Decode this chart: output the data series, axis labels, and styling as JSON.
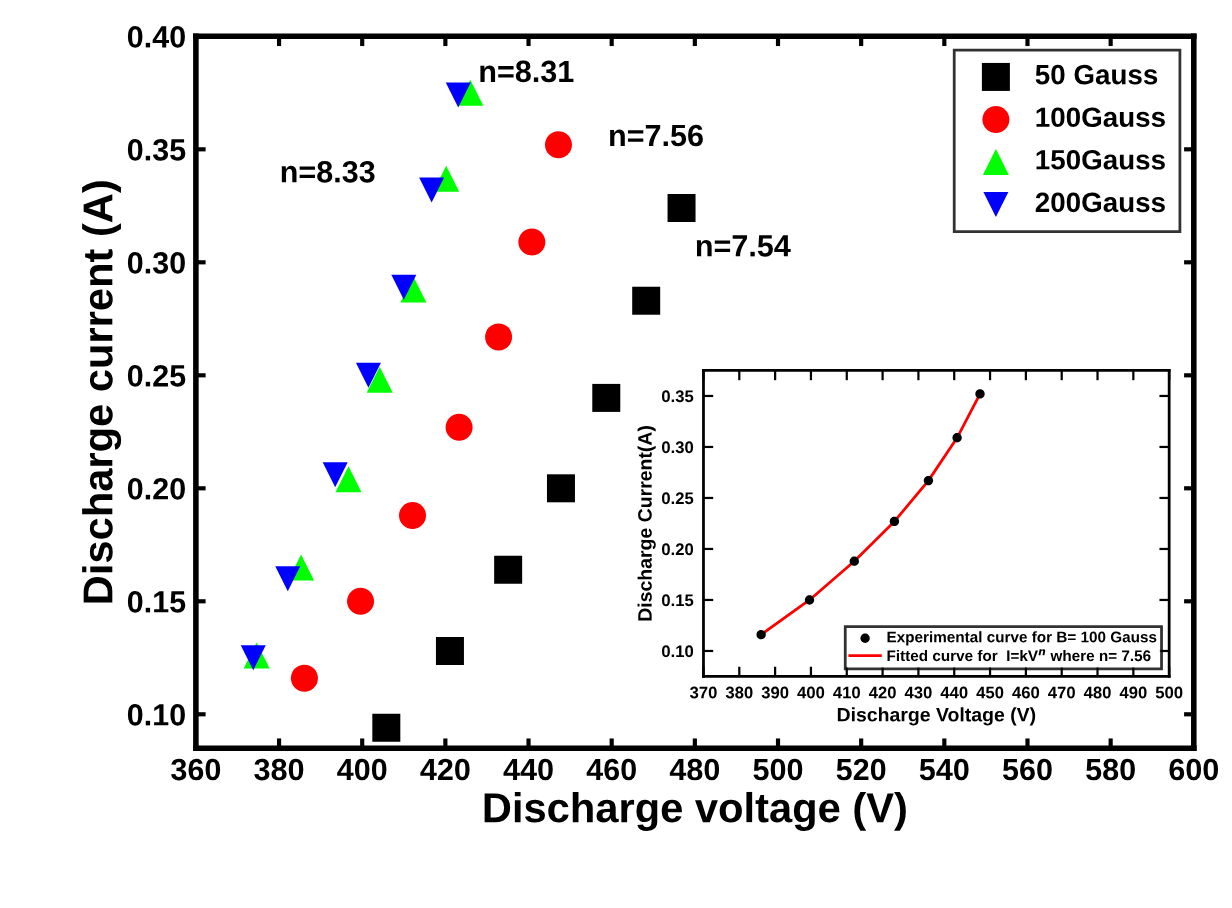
{
  "chart_data": [
    {
      "type": "scatter",
      "xlabel": "Discharge voltage (V)",
      "ylabel": "Discharge current (A)",
      "xlim": [
        360,
        600
      ],
      "ylim": [
        0.085,
        0.4
      ],
      "xticks": [
        360,
        380,
        400,
        420,
        440,
        460,
        480,
        500,
        520,
        540,
        560,
        580,
        600
      ],
      "yticks": [
        {
          "value": 0.1,
          "label": "0.10"
        },
        {
          "value": 0.15,
          "label": "0.15"
        },
        {
          "value": 0.2,
          "label": "0.20"
        },
        {
          "value": 0.25,
          "label": "0.25"
        },
        {
          "value": 0.3,
          "label": "0.30"
        },
        {
          "value": 0.35,
          "label": "0.35"
        },
        {
          "value": 0.4,
          "label": "0.40"
        }
      ],
      "legend": "top right",
      "grid": false,
      "series": [
        {
          "name": "50 Gauss",
          "color": "#000000",
          "marker": "square",
          "x": [
            405.8,
            421.1,
            435.1,
            447.8,
            458.7,
            468.3,
            476.8
          ],
          "values": [
            0.094,
            0.128,
            0.164,
            0.2,
            0.24,
            0.283,
            0.324
          ]
        },
        {
          "name": "100Gauss",
          "color": "#ff0000",
          "marker": "circle",
          "x": [
            386.1,
            399.6,
            412.1,
            423.3,
            432.8,
            440.8,
            447.2
          ],
          "values": [
            0.116,
            0.15,
            0.188,
            0.227,
            0.267,
            0.309,
            0.352
          ]
        },
        {
          "name": "150Gauss",
          "color": "#00ff00",
          "marker": "triangle",
          "x": [
            374.6,
            385.3,
            396.7,
            404.2,
            412.3,
            420.2,
            426.0
          ],
          "values": [
            0.126,
            0.165,
            0.204,
            0.248,
            0.288,
            0.337,
            0.375
          ]
        },
        {
          "name": "200Gauss",
          "color": "#0000ff",
          "marker": "triangle_down",
          "x": [
            373.8,
            382.1,
            393.5,
            401.5,
            410.0,
            416.7,
            423.1
          ],
          "values": [
            0.125,
            0.16,
            0.206,
            0.25,
            0.289,
            0.332,
            0.374
          ]
        }
      ],
      "annotations": [
        "n=8.31",
        "n=7.56",
        "n=8.33",
        "n=7.54"
      ]
    },
    {
      "type": "scatter",
      "xlabel": "Discharge Voltage (V)",
      "ylabel": "Discharge Current(A)",
      "xlim": [
        370,
        500
      ],
      "ylim": [
        0.075,
        0.375
      ],
      "xticks": [
        370,
        380,
        390,
        400,
        410,
        420,
        430,
        440,
        450,
        460,
        470,
        480,
        490,
        500
      ],
      "yticks": [
        {
          "value": 0.1,
          "label": "0.10"
        },
        {
          "value": 0.15,
          "label": "0.15"
        },
        {
          "value": 0.2,
          "label": "0.20"
        },
        {
          "value": 0.25,
          "label": "0.25"
        },
        {
          "value": 0.3,
          "label": "0.30"
        },
        {
          "value": 0.35,
          "label": "0.35"
        }
      ],
      "legend": "bottom right",
      "grid": false,
      "series": [
        {
          "name": "Experimental curve for B= 100 Gauss",
          "color": "#000000",
          "marker": "circle",
          "x": [
            386.1,
            399.6,
            412.1,
            423.3,
            432.8,
            440.8,
            447.2
          ],
          "values": [
            0.116,
            0.15,
            0.188,
            0.227,
            0.267,
            0.309,
            0.352
          ]
        },
        {
          "name": "Fitted curve for  I=kV$^{n}$ where n= 7.56",
          "type": "line",
          "color": "#ff0000",
          "marker": "none",
          "x": [
            386.1,
            399.6,
            412.1,
            423.3,
            432.8,
            440.8,
            447.2
          ],
          "values": [
            0.116,
            0.15,
            0.188,
            0.227,
            0.267,
            0.309,
            0.352
          ]
        }
      ]
    }
  ]
}
